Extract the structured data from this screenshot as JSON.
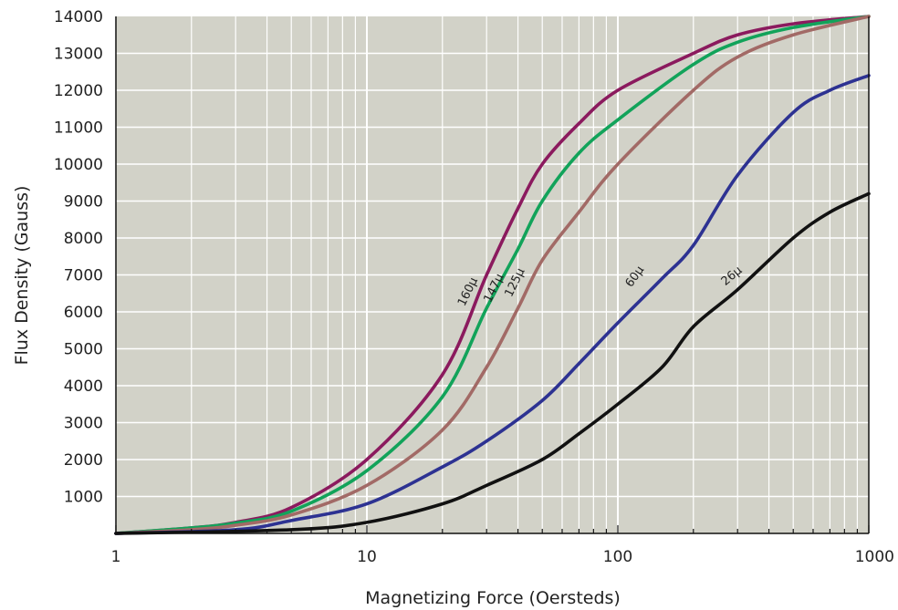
{
  "chart_data": {
    "type": "line",
    "title": "",
    "xlabel": "Magnetizing Force (Oersteds)",
    "ylabel": "Flux Density (Gauss)",
    "x_scale": "log",
    "xlim": [
      1,
      1000
    ],
    "ylim": [
      0,
      14000
    ],
    "x_ticks": [
      1,
      10,
      100,
      1000
    ],
    "x_tick_labels": [
      "1",
      "10",
      "100",
      "1000"
    ],
    "y_ticks": [
      1000,
      2000,
      3000,
      4000,
      5000,
      6000,
      7000,
      8000,
      9000,
      10000,
      11000,
      12000,
      13000,
      14000
    ],
    "y_tick_labels": [
      "1000",
      "2000",
      "3000",
      "4000",
      "5000",
      "6000",
      "7000",
      "8000",
      "9000",
      "10000",
      "11000",
      "12000",
      "13000",
      "14000"
    ],
    "grid": true,
    "background": "#d2d2c8",
    "series": [
      {
        "name": "160µ",
        "color": "#8b1a5e",
        "points": [
          [
            1,
            0
          ],
          [
            2,
            150
          ],
          [
            3,
            300
          ],
          [
            5,
            700
          ],
          [
            10,
            2000
          ],
          [
            20,
            4300
          ],
          [
            30,
            7000
          ],
          [
            40,
            8800
          ],
          [
            50,
            10000
          ],
          [
            70,
            11100
          ],
          [
            100,
            12000
          ],
          [
            200,
            13000
          ],
          [
            300,
            13500
          ],
          [
            500,
            13800
          ],
          [
            1000,
            14000
          ]
        ]
      },
      {
        "name": "147µ",
        "color": "#12a35a",
        "points": [
          [
            1,
            0
          ],
          [
            2,
            150
          ],
          [
            3,
            280
          ],
          [
            5,
            600
          ],
          [
            10,
            1700
          ],
          [
            20,
            3700
          ],
          [
            30,
            6100
          ],
          [
            40,
            7700
          ],
          [
            50,
            9000
          ],
          [
            70,
            10300
          ],
          [
            100,
            11200
          ],
          [
            200,
            12700
          ],
          [
            300,
            13300
          ],
          [
            500,
            13700
          ],
          [
            1000,
            14000
          ]
        ]
      },
      {
        "name": "125µ",
        "color": "#a26a66",
        "points": [
          [
            1,
            0
          ],
          [
            2,
            100
          ],
          [
            3,
            220
          ],
          [
            5,
            500
          ],
          [
            10,
            1300
          ],
          [
            20,
            2800
          ],
          [
            30,
            4500
          ],
          [
            40,
            6100
          ],
          [
            50,
            7400
          ],
          [
            70,
            8700
          ],
          [
            100,
            10000
          ],
          [
            200,
            12000
          ],
          [
            300,
            12900
          ],
          [
            500,
            13500
          ],
          [
            1000,
            14000
          ]
        ]
      },
      {
        "name": "60µ",
        "color": "#2d3292",
        "points": [
          [
            1,
            0
          ],
          [
            3,
            100
          ],
          [
            5,
            350
          ],
          [
            10,
            800
          ],
          [
            20,
            1800
          ],
          [
            30,
            2500
          ],
          [
            50,
            3600
          ],
          [
            70,
            4600
          ],
          [
            100,
            5700
          ],
          [
            150,
            6900
          ],
          [
            200,
            7800
          ],
          [
            300,
            9700
          ],
          [
            500,
            11400
          ],
          [
            700,
            12000
          ],
          [
            1000,
            12400
          ]
        ]
      },
      {
        "name": "26µ",
        "color": "#111111",
        "points": [
          [
            1,
            0
          ],
          [
            5,
            100
          ],
          [
            10,
            300
          ],
          [
            20,
            800
          ],
          [
            30,
            1300
          ],
          [
            50,
            2000
          ],
          [
            70,
            2700
          ],
          [
            100,
            3500
          ],
          [
            150,
            4500
          ],
          [
            200,
            5600
          ],
          [
            300,
            6600
          ],
          [
            500,
            8000
          ],
          [
            700,
            8700
          ],
          [
            1000,
            9200
          ]
        ]
      }
    ],
    "curve_labels": [
      {
        "text": "160µ",
        "series": "160µ",
        "x": 26,
        "y": 6500,
        "angle": -64,
        "size": 15
      },
      {
        "text": "147µ",
        "series": "147µ",
        "x": 33,
        "y": 6600,
        "angle": -64,
        "size": 11
      },
      {
        "text": "125µ",
        "series": "125µ",
        "x": 40,
        "y": 6750,
        "angle": -64,
        "size": 11
      },
      {
        "text": "60µ",
        "series": "60µ",
        "x": 120,
        "y": 6900,
        "angle": -55,
        "size": 13
      },
      {
        "text": "26µ",
        "series": "26µ",
        "x": 290,
        "y": 6900,
        "angle": -40,
        "size": 13
      }
    ]
  }
}
